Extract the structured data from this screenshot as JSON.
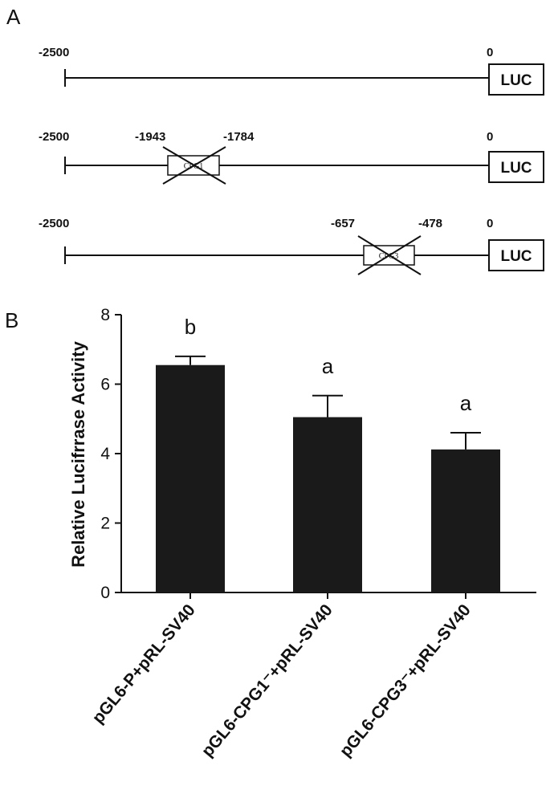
{
  "panel_a": {
    "label": "A",
    "luc_label": "LUC",
    "constructs": [
      {
        "start_label": "-2500",
        "end_label": "0",
        "deletion": null
      },
      {
        "start_label": "-2500",
        "end_label": "0",
        "deletion": {
          "name": "CPG1",
          "from_label": "-1943",
          "to_label": "-1784"
        }
      },
      {
        "start_label": "-2500",
        "end_label": "0",
        "deletion": {
          "name": "CPG3",
          "from_label": "-657",
          "to_label": "-478"
        }
      }
    ]
  },
  "panel_b": {
    "label": "B"
  },
  "chart_data": {
    "type": "bar",
    "categories": [
      "pGL6-P+pRL-SV40",
      "pGL6-CPG1⁻+pRL-SV40",
      "pGL6-CPG3⁻+pRL-SV40"
    ],
    "values": [
      6.55,
      5.05,
      4.12
    ],
    "errors": [
      0.25,
      0.62,
      0.48
    ],
    "significance": [
      "b",
      "a",
      "a"
    ],
    "ylabel": "Relative Lucifrrase Activity",
    "xlabel": "",
    "ylim": [
      0,
      8
    ],
    "yticks": [
      0,
      2,
      4,
      6,
      8
    ],
    "bar_color": "#1a1a1a",
    "grid": false
  }
}
